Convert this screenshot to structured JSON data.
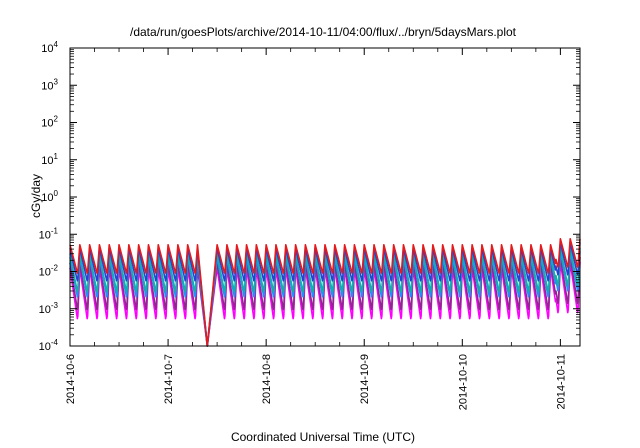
{
  "chart_data": {
    "type": "line",
    "title": "/data/run/goesPlots/archive/2014-10-11/04:00/flux/../bryn/5daysMars.plot",
    "xlabel": "Coordinated Universal Time (UTC)",
    "ylabel": "cGy/day",
    "x_tick_labels": [
      "2014-10-6",
      "2014-10-7",
      "2014-10-8",
      "2014-10-9",
      "2014-10-10",
      "2014-10-11"
    ],
    "x_ticks_days": [
      0,
      1,
      2,
      3,
      4,
      5
    ],
    "xlim_days": [
      0,
      5.2
    ],
    "y_scale": "log",
    "ylim": [
      0.0001,
      10000
    ],
    "y_tick_labels": [
      {
        "base": "10",
        "exp": "4",
        "value": 10000
      },
      {
        "base": "10",
        "exp": "3",
        "value": 1000
      },
      {
        "base": "10",
        "exp": "2",
        "value": 100
      },
      {
        "base": "10",
        "exp": "1",
        "value": 10
      },
      {
        "base": "10",
        "exp": "0",
        "value": 1
      },
      {
        "base": "10",
        "exp": "-1",
        "value": 0.1
      },
      {
        "base": "10",
        "exp": "-2",
        "value": 0.01
      },
      {
        "base": "10",
        "exp": "-3",
        "value": 0.001
      },
      {
        "base": "10",
        "exp": "-4",
        "value": 0.0001
      }
    ],
    "grid": false,
    "legend": "none",
    "series": [
      {
        "color": "#e41a1c",
        "peak": 0.052,
        "trough": 0.0085
      },
      {
        "color": "#2a3fd6",
        "peak": 0.042,
        "trough": 0.0052
      },
      {
        "color": "#12b0a6",
        "peak": 0.03,
        "trough": 0.0026
      },
      {
        "color": "#1e90ff",
        "peak": 0.024,
        "trough": 0.0019
      },
      {
        "color": "#8b2a8b",
        "peak": 0.017,
        "trough": 0.00085
      },
      {
        "color": "#ff00ff",
        "peak": 0.0125,
        "trough": 0.00048
      }
    ],
    "cycle_days": 0.1,
    "gap_days": [
      1.3,
      1.5
    ],
    "gap_min": 0.0001,
    "end_bump_start_day": 4.95,
    "end_bump_factor": 1.45
  }
}
